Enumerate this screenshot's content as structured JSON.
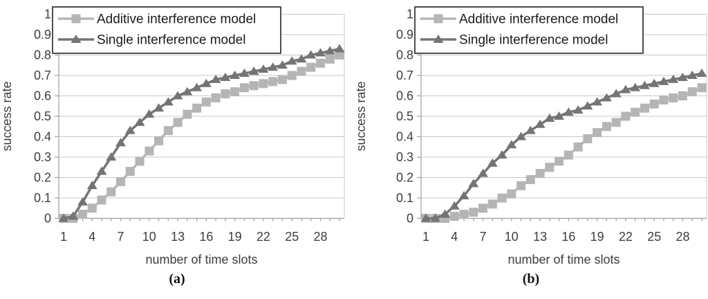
{
  "figure": {
    "description": "Two line charts comparing interference models",
    "accent_colors": {
      "additive_gray": "#b5b5b5",
      "single_gray": "#747474",
      "gridline_gray": "#c8c8c8",
      "axis_gray": "#9f9f9f",
      "tick_text": "#3d3d3d",
      "legend_text": "#1a1a1a",
      "legend_border": "#3a3a3a"
    }
  },
  "chart_data": [
    {
      "type": "line",
      "caption": "(a)",
      "xlabel": "number of time slots",
      "ylabel": "success rate",
      "x": [
        1,
        2,
        3,
        4,
        5,
        6,
        7,
        8,
        9,
        10,
        11,
        12,
        13,
        14,
        15,
        16,
        17,
        18,
        19,
        20,
        21,
        22,
        23,
        24,
        25,
        26,
        27,
        28,
        29,
        30
      ],
      "x_tick_labels": [
        "1",
        "4",
        "7",
        "10",
        "13",
        "16",
        "19",
        "22",
        "25",
        "28"
      ],
      "y_tick_labels": [
        "0",
        "0.1",
        "0.2",
        "0.3",
        "0.4",
        "0.5",
        "0.6",
        "0.7",
        "0.8",
        "0.9",
        "1"
      ],
      "ylim": [
        0,
        1
      ],
      "ytick_step": 0.1,
      "grid": true,
      "legend_position": "top-left-inside",
      "series": [
        {
          "name": "Additive interference model",
          "marker": "square",
          "color": "#b5b5b5",
          "values": [
            0,
            0,
            0.02,
            0.05,
            0.09,
            0.13,
            0.18,
            0.23,
            0.28,
            0.33,
            0.38,
            0.43,
            0.47,
            0.51,
            0.54,
            0.57,
            0.59,
            0.61,
            0.62,
            0.64,
            0.65,
            0.66,
            0.67,
            0.68,
            0.7,
            0.72,
            0.74,
            0.76,
            0.78,
            0.8
          ]
        },
        {
          "name": "Single interference model",
          "marker": "triangle",
          "color": "#747474",
          "values": [
            0,
            0.01,
            0.08,
            0.16,
            0.23,
            0.3,
            0.37,
            0.43,
            0.47,
            0.51,
            0.54,
            0.57,
            0.6,
            0.62,
            0.64,
            0.66,
            0.68,
            0.69,
            0.7,
            0.71,
            0.72,
            0.73,
            0.74,
            0.75,
            0.77,
            0.78,
            0.8,
            0.81,
            0.82,
            0.83
          ]
        }
      ]
    },
    {
      "type": "line",
      "caption": "(b)",
      "xlabel": "number of time slots",
      "ylabel": "success rate",
      "x": [
        1,
        2,
        3,
        4,
        5,
        6,
        7,
        8,
        9,
        10,
        11,
        12,
        13,
        14,
        15,
        16,
        17,
        18,
        19,
        20,
        21,
        22,
        23,
        24,
        25,
        26,
        27,
        28,
        29,
        30
      ],
      "x_tick_labels": [
        "1",
        "4",
        "7",
        "10",
        "13",
        "16",
        "19",
        "22",
        "25",
        "28"
      ],
      "y_tick_labels": [
        "0",
        "0.1",
        "0.2",
        "0.3",
        "0.4",
        "0.5",
        "0.6",
        "0.7",
        "0.8",
        "0.9",
        "1"
      ],
      "ylim": [
        0,
        1
      ],
      "ytick_step": 0.1,
      "grid": true,
      "legend_position": "top-left-inside",
      "series": [
        {
          "name": "Additive interference model",
          "marker": "square",
          "color": "#b5b5b5",
          "values": [
            0,
            0,
            0,
            0.01,
            0.02,
            0.03,
            0.05,
            0.07,
            0.1,
            0.12,
            0.16,
            0.19,
            0.22,
            0.25,
            0.28,
            0.31,
            0.35,
            0.39,
            0.42,
            0.45,
            0.47,
            0.5,
            0.52,
            0.54,
            0.56,
            0.58,
            0.59,
            0.6,
            0.62,
            0.64
          ]
        },
        {
          "name": "Single interference model",
          "marker": "triangle",
          "color": "#747474",
          "values": [
            0,
            0,
            0.02,
            0.06,
            0.11,
            0.17,
            0.22,
            0.27,
            0.31,
            0.36,
            0.4,
            0.43,
            0.46,
            0.49,
            0.5,
            0.52,
            0.53,
            0.55,
            0.57,
            0.59,
            0.61,
            0.63,
            0.64,
            0.65,
            0.66,
            0.67,
            0.68,
            0.69,
            0.7,
            0.71
          ]
        }
      ]
    }
  ]
}
